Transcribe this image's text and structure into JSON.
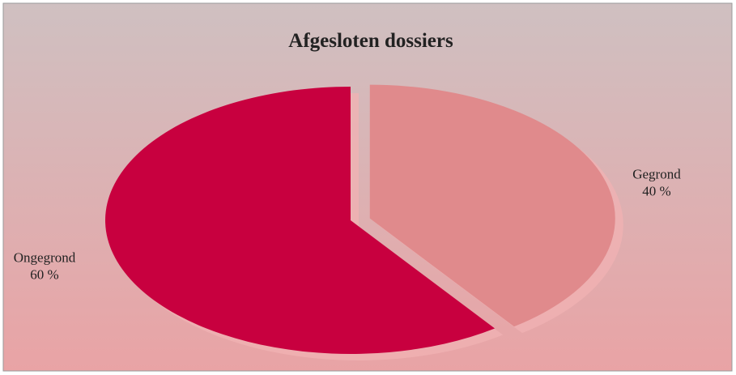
{
  "chart_data": {
    "type": "pie",
    "title": "Afgesloten dossiers",
    "categories": [
      "Gegrond",
      "Ongegrond"
    ],
    "values": [
      40,
      60
    ],
    "value_labels": [
      "40 %",
      "60 %"
    ],
    "colors": [
      "#e08a8c",
      "#c8003f"
    ],
    "explode": [
      "Gegrond"
    ]
  }
}
